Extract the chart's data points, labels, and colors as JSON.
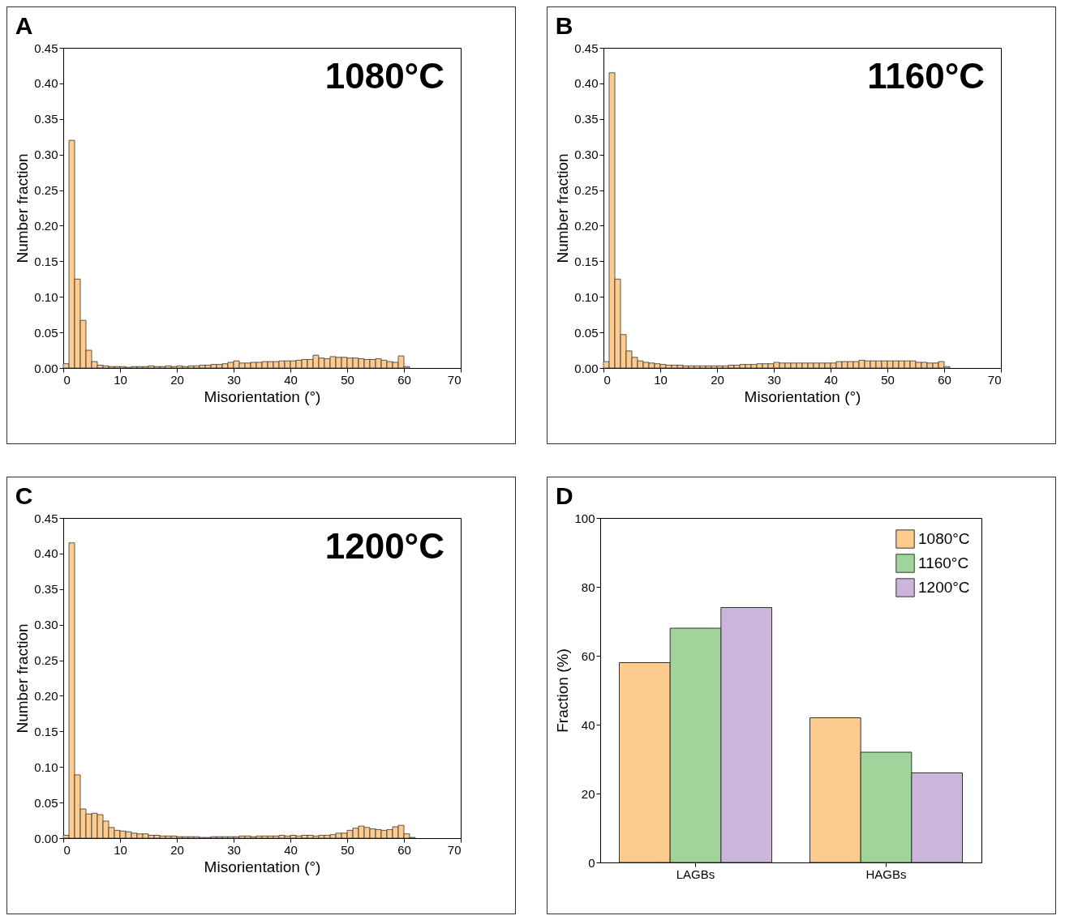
{
  "chart_data": [
    {
      "type": "histogram",
      "title": "A",
      "xlabel": "Misorientation (°)",
      "ylabel": "Number fraction",
      "annotations": [
        "1080°C"
      ],
      "color": "#fdcb8e",
      "bins": [
        0,
        1,
        2,
        3,
        4,
        5,
        6,
        7,
        8,
        9,
        10,
        11,
        12,
        13,
        14,
        15,
        16,
        17,
        18,
        19,
        20,
        21,
        22,
        23,
        24,
        25,
        26,
        27,
        28,
        29,
        30,
        31,
        32,
        33,
        34,
        35,
        36,
        37,
        38,
        39,
        40,
        41,
        42,
        43,
        44,
        45,
        46,
        47,
        48,
        49,
        50,
        51,
        52,
        53,
        54,
        55,
        56,
        57,
        58,
        59,
        60,
        61
      ],
      "values": [
        0.006,
        0.32,
        0.125,
        0.067,
        0.025,
        0.009,
        0.004,
        0.003,
        0.002,
        0.002,
        0.002,
        0.001,
        0.002,
        0.002,
        0.002,
        0.003,
        0.002,
        0.002,
        0.003,
        0.002,
        0.003,
        0.002,
        0.003,
        0.003,
        0.004,
        0.004,
        0.005,
        0.005,
        0.006,
        0.008,
        0.01,
        0.007,
        0.007,
        0.008,
        0.008,
        0.009,
        0.009,
        0.009,
        0.01,
        0.01,
        0.01,
        0.011,
        0.012,
        0.012,
        0.018,
        0.014,
        0.013,
        0.016,
        0.015,
        0.015,
        0.014,
        0.014,
        0.013,
        0.012,
        0.012,
        0.013,
        0.011,
        0.009,
        0.008,
        0.017,
        0.002
      ],
      "xlim": [
        0,
        70
      ],
      "xticks": [
        0,
        10,
        20,
        30,
        40,
        50,
        60,
        70
      ],
      "ylim": [
        0,
        0.45
      ],
      "yticks": [
        {
          "value": 0,
          "label": "0.00"
        },
        0.05,
        {
          "value": 0.1,
          "label": "0.10"
        },
        0.15,
        {
          "value": 0.2,
          "label": "0.20"
        },
        0.25,
        {
          "value": 0.3,
          "label": "0.30"
        },
        0.35,
        {
          "value": 0.4,
          "label": "0.40"
        },
        0.45
      ]
    },
    {
      "type": "histogram",
      "title": "B",
      "xlabel": "Misorientation (°)",
      "ylabel": "Number fraction",
      "annotations": [
        "1160°C"
      ],
      "color": "#fdcb8e",
      "bins": [
        0,
        1,
        2,
        3,
        4,
        5,
        6,
        7,
        8,
        9,
        10,
        11,
        12,
        13,
        14,
        15,
        16,
        17,
        18,
        19,
        20,
        21,
        22,
        23,
        24,
        25,
        26,
        27,
        28,
        29,
        30,
        31,
        32,
        33,
        34,
        35,
        36,
        37,
        38,
        39,
        40,
        41,
        42,
        43,
        44,
        45,
        46,
        47,
        48,
        49,
        50,
        51,
        52,
        53,
        54,
        55,
        56,
        57,
        58,
        59,
        60,
        61
      ],
      "values": [
        0.009,
        0.415,
        0.125,
        0.047,
        0.024,
        0.015,
        0.01,
        0.008,
        0.007,
        0.006,
        0.005,
        0.004,
        0.004,
        0.004,
        0.003,
        0.003,
        0.003,
        0.003,
        0.003,
        0.003,
        0.003,
        0.003,
        0.004,
        0.004,
        0.005,
        0.005,
        0.005,
        0.006,
        0.006,
        0.006,
        0.008,
        0.007,
        0.007,
        0.007,
        0.007,
        0.007,
        0.007,
        0.007,
        0.007,
        0.007,
        0.007,
        0.009,
        0.009,
        0.009,
        0.009,
        0.011,
        0.01,
        0.01,
        0.01,
        0.01,
        0.01,
        0.01,
        0.01,
        0.01,
        0.01,
        0.008,
        0.008,
        0.007,
        0.007,
        0.009,
        0.002
      ],
      "xlim": [
        0,
        70
      ],
      "xticks": [
        0,
        10,
        20,
        30,
        40,
        50,
        60,
        70
      ],
      "ylim": [
        0,
        0.45
      ],
      "yticks": [
        {
          "value": 0,
          "label": "0.00"
        },
        0.05,
        {
          "value": 0.1,
          "label": "0.10"
        },
        0.15,
        {
          "value": 0.2,
          "label": "0.20"
        },
        0.25,
        {
          "value": 0.3,
          "label": "0.30"
        },
        0.35,
        {
          "value": 0.4,
          "label": "0.40"
        },
        0.45
      ]
    },
    {
      "type": "histogram",
      "title": "C",
      "xlabel": "Misorientation (°)",
      "ylabel": "Number fraction",
      "annotations": [
        "1200°C"
      ],
      "color": "#fdcb8e",
      "bins": [
        0,
        1,
        2,
        3,
        4,
        5,
        6,
        7,
        8,
        9,
        10,
        11,
        12,
        13,
        14,
        15,
        16,
        17,
        18,
        19,
        20,
        21,
        22,
        23,
        24,
        25,
        26,
        27,
        28,
        29,
        30,
        31,
        32,
        33,
        34,
        35,
        36,
        37,
        38,
        39,
        40,
        41,
        42,
        43,
        44,
        45,
        46,
        47,
        48,
        49,
        50,
        51,
        52,
        53,
        54,
        55,
        56,
        57,
        58,
        59,
        60,
        61,
        62
      ],
      "values": [
        0.004,
        0.415,
        0.089,
        0.041,
        0.034,
        0.035,
        0.033,
        0.024,
        0.015,
        0.011,
        0.01,
        0.009,
        0.007,
        0.006,
        0.006,
        0.004,
        0.004,
        0.003,
        0.003,
        0.003,
        0.002,
        0.002,
        0.002,
        0.002,
        0.001,
        0.001,
        0.002,
        0.002,
        0.002,
        0.002,
        0.002,
        0.003,
        0.003,
        0.002,
        0.003,
        0.003,
        0.003,
        0.003,
        0.004,
        0.003,
        0.004,
        0.003,
        0.004,
        0.004,
        0.003,
        0.004,
        0.004,
        0.005,
        0.007,
        0.007,
        0.011,
        0.014,
        0.017,
        0.015,
        0.013,
        0.012,
        0.011,
        0.012,
        0.016,
        0.018,
        0.006,
        0.001
      ],
      "xlim": [
        0,
        70
      ],
      "xticks": [
        0,
        10,
        20,
        30,
        40,
        50,
        60,
        70
      ],
      "ylim": [
        0,
        0.45
      ],
      "yticks": [
        {
          "value": 0,
          "label": "0.00"
        },
        0.05,
        {
          "value": 0.1,
          "label": "0.10"
        },
        0.15,
        {
          "value": 0.2,
          "label": "0.20"
        },
        0.25,
        {
          "value": 0.3,
          "label": "0.30"
        },
        0.35,
        {
          "value": 0.4,
          "label": "0.40"
        },
        0.45
      ]
    },
    {
      "type": "bar",
      "title": "D",
      "ylabel": "Fraction (%)",
      "categories": [
        "LAGBs",
        "HAGBs"
      ],
      "legend": "top right",
      "series": [
        {
          "name": "1080°C",
          "color": "#fdcb8e",
          "values": [
            58,
            42
          ]
        },
        {
          "name": "1160°C",
          "color": "#9fd49b",
          "values": [
            68,
            32
          ]
        },
        {
          "name": "1200°C",
          "color": "#cbb5db",
          "values": [
            74,
            26
          ]
        }
      ],
      "ylim": [
        0,
        100
      ],
      "yticks": [
        0,
        20,
        40,
        60,
        80,
        100
      ]
    }
  ]
}
